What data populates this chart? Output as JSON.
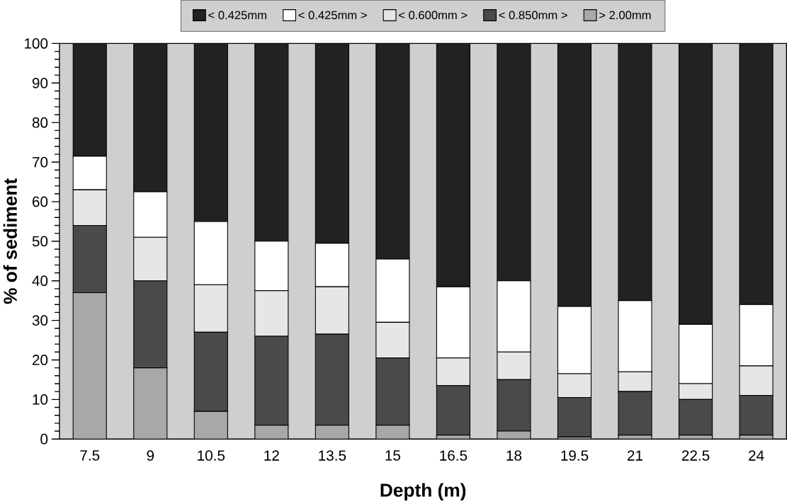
{
  "chart_data": {
    "type": "bar",
    "stacked": true,
    "xlabel": "Depth (m)",
    "ylabel": "% of sediment",
    "categories": [
      "7.5",
      "9",
      "10.5",
      "12",
      "13.5",
      "15",
      "16.5",
      "18",
      "19.5",
      "21",
      "22.5",
      "24"
    ],
    "series": [
      {
        "name": "> 2.00mm",
        "color": "#a8a8a8",
        "values": [
          37,
          18,
          7,
          3.5,
          3.5,
          3.5,
          1,
          2,
          0.5,
          1,
          1,
          1
        ]
      },
      {
        "name": "< 0.850mm >",
        "color": "#4a4a4a",
        "values": [
          17,
          22,
          20,
          22.5,
          23,
          17,
          12.5,
          13,
          10,
          11,
          9,
          10
        ]
      },
      {
        "name": "< 0.600mm >",
        "color": "#e6e6e6",
        "values": [
          9,
          11,
          12,
          11.5,
          12,
          9,
          7,
          7,
          6,
          5,
          4,
          7.5
        ]
      },
      {
        "name": "< 0.425mm >",
        "color": "#ffffff",
        "values": [
          8.5,
          11.5,
          16,
          12.5,
          11,
          16,
          18,
          18,
          17,
          18,
          15,
          15.5
        ]
      },
      {
        "name": "< 0.425mm",
        "color": "#222222",
        "values": [
          28.5,
          37.5,
          45,
          50,
          50.5,
          54.5,
          61.5,
          60,
          66.5,
          65,
          71,
          66
        ]
      }
    ],
    "ylim": [
      0,
      100
    ],
    "yticks": [
      0,
      10,
      20,
      30,
      40,
      50,
      60,
      70,
      80,
      90,
      100
    ],
    "legend": "top",
    "grid": false
  }
}
